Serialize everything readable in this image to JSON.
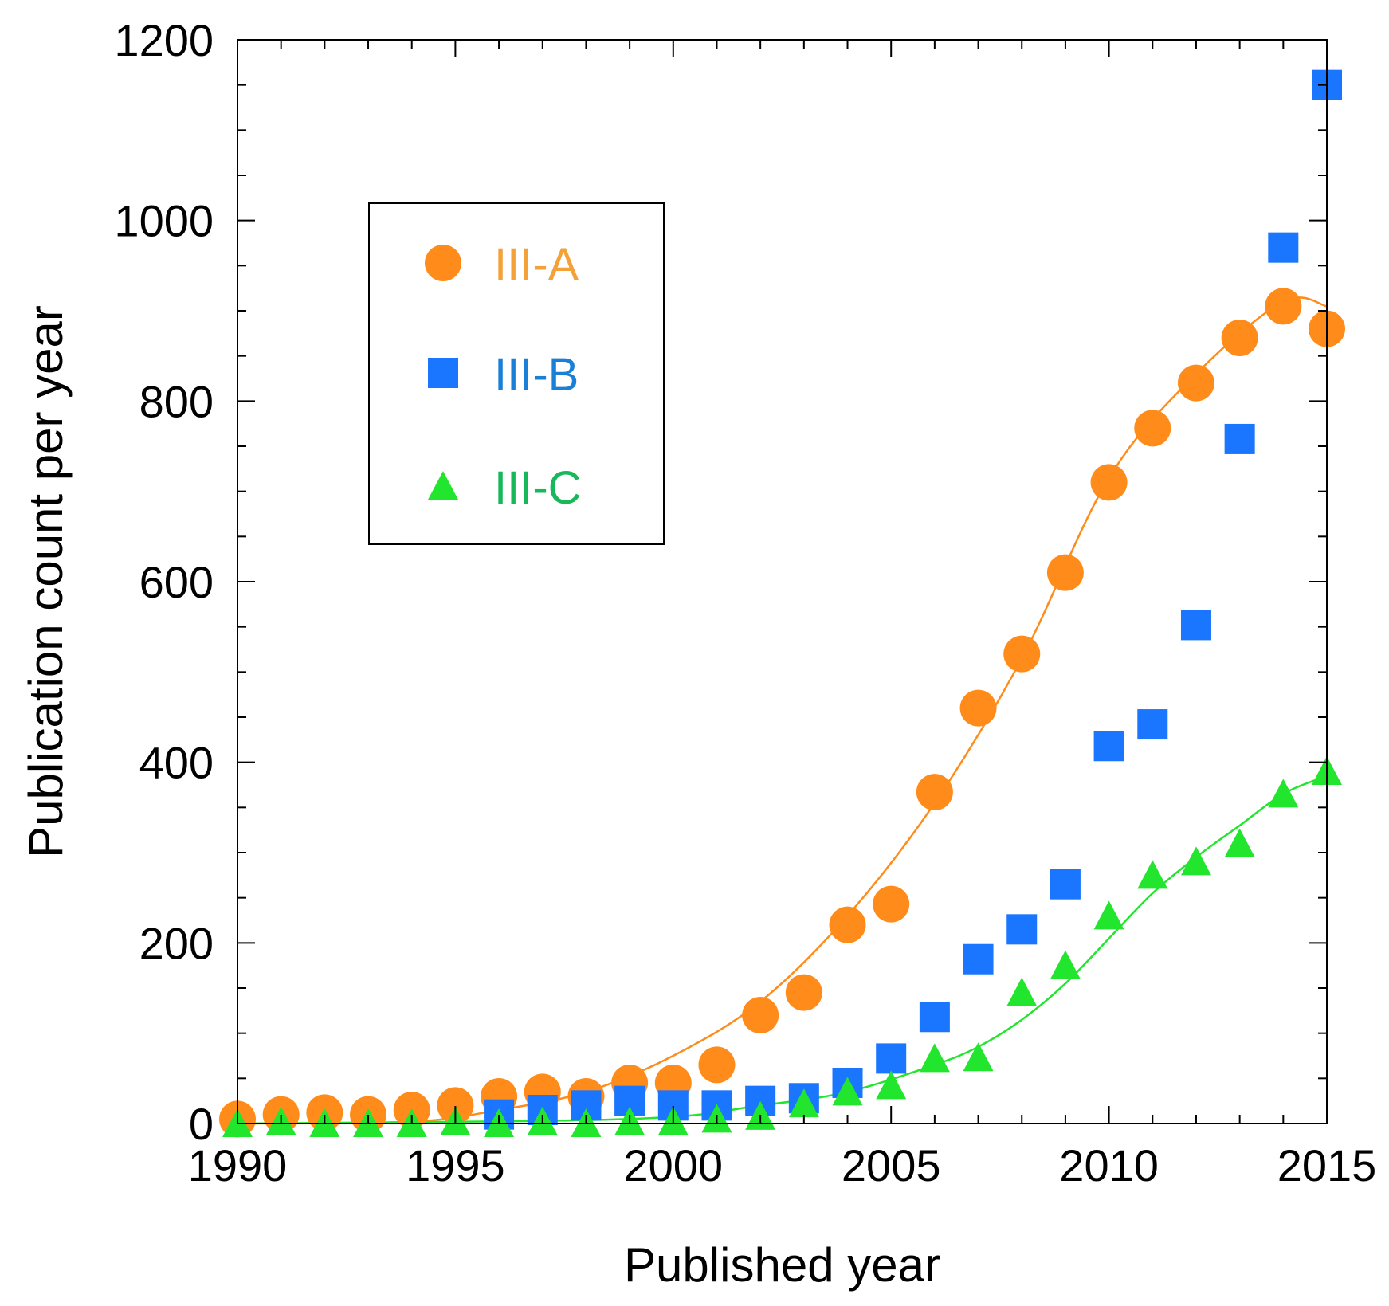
{
  "chart_data": {
    "type": "scatter",
    "xlabel": "Published year",
    "ylabel": "Publication count per year",
    "xlim": [
      1990,
      2015
    ],
    "ylim": [
      0,
      1200
    ],
    "xticks": [
      1990,
      1995,
      2000,
      2005,
      2010,
      2015
    ],
    "yticks": [
      0,
      200,
      400,
      600,
      800,
      1000,
      1200
    ],
    "legend_position": "upper-left",
    "series": [
      {
        "name": "III-A",
        "marker": "circle",
        "color": "#FF8C1A",
        "text_color": "#F5A13A",
        "x": [
          1990,
          1991,
          1992,
          1993,
          1994,
          1995,
          1996,
          1997,
          1998,
          1999,
          2000,
          2001,
          2002,
          2003,
          2004,
          2005,
          2006,
          2007,
          2008,
          2009,
          2010,
          2011,
          2012,
          2013,
          2014,
          2015
        ],
        "values": [
          5,
          10,
          12,
          10,
          15,
          20,
          30,
          35,
          30,
          45,
          45,
          65,
          120,
          145,
          220,
          243,
          367,
          460,
          520,
          610,
          710,
          770,
          820,
          870,
          905,
          880
        ],
        "fit": {
          "x": [
            1990,
            1994,
            1996,
            1998,
            2000,
            2002,
            2004,
            2006,
            2008,
            2010,
            2012,
            2014,
            2015
          ],
          "values": [
            0,
            2,
            15,
            35,
            75,
            135,
            230,
            355,
            515,
            715,
            830,
            910,
            905
          ]
        }
      },
      {
        "name": "III-B",
        "marker": "square",
        "color": "#1A75FF",
        "text_color": "#1A7FD6",
        "x": [
          1996,
          1997,
          1998,
          1999,
          2000,
          2001,
          2002,
          2003,
          2004,
          2005,
          2006,
          2007,
          2008,
          2009,
          2010,
          2011,
          2012,
          2013,
          2014,
          2015
        ],
        "values": [
          10,
          15,
          20,
          25,
          20,
          20,
          25,
          28,
          45,
          72,
          118,
          182,
          215,
          265,
          418,
          442,
          552,
          758,
          970,
          1150
        ]
      },
      {
        "name": "III-C",
        "marker": "triangle",
        "color": "#22E62E",
        "text_color": "#17B85A",
        "x": [
          1990,
          1991,
          1992,
          1993,
          1994,
          1995,
          1996,
          1997,
          1998,
          1999,
          2000,
          2001,
          2002,
          2003,
          2004,
          2005,
          2006,
          2007,
          2008,
          2009,
          2010,
          2011,
          2012,
          2013,
          2014,
          2015
        ],
        "values": [
          0,
          2,
          0,
          0,
          0,
          2,
          0,
          2,
          0,
          2,
          2,
          5,
          8,
          22,
          35,
          42,
          72,
          73,
          145,
          175,
          230,
          275,
          290,
          310,
          365,
          390
        ],
        "fit": {
          "x": [
            1990,
            1999,
            2002,
            2004,
            2006,
            2007,
            2008,
            2009,
            2010,
            2011,
            2012,
            2013,
            2014,
            2015
          ],
          "values": [
            0,
            5,
            20,
            35,
            65,
            85,
            115,
            155,
            205,
            255,
            295,
            330,
            365,
            385
          ]
        }
      }
    ]
  }
}
